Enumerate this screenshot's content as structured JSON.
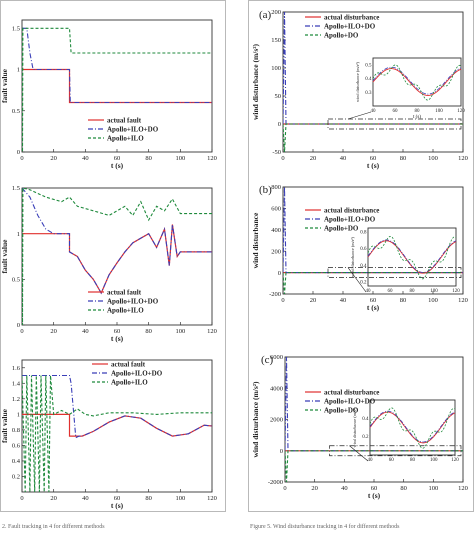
{
  "colors": {
    "actual": "#e0302f",
    "ilo_do": "#3a3fb8",
    "ilo": "#1f8a3c",
    "frame": "#b9b9b9"
  },
  "left_column": {
    "figure_caption_fragment": "2. Fault tracking in 4 for different methods"
  },
  "right_column": {
    "figure_caption_fragment": "Figure 5. Wind disturbance tracking in 4 for different methods"
  },
  "chart_data": [
    {
      "id": "left-a",
      "type": "line",
      "panel_label": "",
      "xlabel": "t (s)",
      "ylabel": "fault value",
      "xlim": [
        0,
        120
      ],
      "ylim": [
        0,
        1.6
      ],
      "x_ticks": [
        0,
        20,
        40,
        60,
        80,
        100,
        120
      ],
      "y_ticks": [
        0,
        0.5,
        1,
        1.5
      ],
      "y_tick_labels": [
        "0",
        "0.5",
        "1",
        "1.5"
      ],
      "legend": [
        "actual fault",
        "Apollo+ILO+DO",
        "Apollo+ILO"
      ],
      "series": [
        {
          "name": "actual fault",
          "x": [
            0,
            30,
            30,
            120
          ],
          "y": [
            1,
            1,
            0.6,
            0.6
          ]
        },
        {
          "name": "Apollo+ILO+DO",
          "x": [
            0,
            3,
            5,
            7,
            30,
            30.5,
            120
          ],
          "y": [
            1.5,
            1.5,
            1.2,
            1.0,
            1.0,
            0.6,
            0.6
          ]
        },
        {
          "name": "Apollo+ILO",
          "x": [
            0,
            0.3,
            0.6,
            1,
            30,
            31,
            120
          ],
          "y": [
            1.5,
            0,
            1.5,
            1.5,
            1.5,
            1.2,
            1.2
          ]
        }
      ]
    },
    {
      "id": "left-b",
      "type": "line",
      "panel_label": "",
      "xlabel": "t (s)",
      "ylabel": "fault value",
      "xlim": [
        0,
        120
      ],
      "ylim": [
        0,
        1.5
      ],
      "x_ticks": [
        0,
        20,
        40,
        60,
        80,
        100,
        120
      ],
      "y_ticks": [
        0,
        0.5,
        1,
        1.5
      ],
      "y_tick_labels": [
        "0",
        "0.5",
        "1",
        "1.5"
      ],
      "legend": [
        "actual fault",
        "Apollo+ILO+DO",
        "Apollo+ILO"
      ],
      "series": [
        {
          "name": "actual fault",
          "x": [
            0,
            30,
            30,
            35,
            40,
            45,
            50,
            55,
            60,
            65,
            70,
            75,
            80,
            85,
            90,
            93,
            95,
            98,
            100,
            120
          ],
          "y": [
            1,
            1,
            0.8,
            0.75,
            0.6,
            0.5,
            0.35,
            0.55,
            0.68,
            0.8,
            0.9,
            0.95,
            1.0,
            0.85,
            1.05,
            0.65,
            1.1,
            0.75,
            0.8,
            0.8
          ]
        },
        {
          "name": "Apollo+ILO+DO",
          "x": [
            0,
            5,
            10,
            15,
            20,
            30,
            30,
            35,
            40,
            45,
            50,
            55,
            60,
            65,
            70,
            75,
            80,
            85,
            90,
            93,
            95,
            98,
            100,
            120
          ],
          "y": [
            1.5,
            1.4,
            1.2,
            1.05,
            1.0,
            1.0,
            0.8,
            0.75,
            0.6,
            0.5,
            0.35,
            0.55,
            0.68,
            0.8,
            0.9,
            0.95,
            1.0,
            0.85,
            1.05,
            0.65,
            1.1,
            0.75,
            0.8,
            0.8
          ]
        },
        {
          "name": "Apollo+ILO",
          "x": [
            0,
            0.3,
            0.6,
            5,
            15,
            25,
            30,
            35,
            45,
            55,
            65,
            70,
            75,
            80,
            85,
            90,
            95,
            100,
            120
          ],
          "y": [
            1.5,
            0,
            1.5,
            1.48,
            1.4,
            1.35,
            1.4,
            1.3,
            1.25,
            1.2,
            1.3,
            1.2,
            1.35,
            1.15,
            1.3,
            1.25,
            1.38,
            1.22,
            1.22
          ]
        }
      ]
    },
    {
      "id": "left-c",
      "type": "line",
      "panel_label": "",
      "xlabel": "t (s)",
      "ylabel": "fault value",
      "xlim": [
        0,
        120
      ],
      "ylim": [
        0,
        1.7
      ],
      "x_ticks": [
        0,
        20,
        40,
        60,
        80,
        100,
        120
      ],
      "y_ticks": [
        0.2,
        0.4,
        0.6,
        0.8,
        1,
        1.2,
        1.4,
        1.6
      ],
      "y_tick_labels": [
        "0.2",
        "0.4",
        "0.6",
        "0.8",
        "1",
        "1.2",
        "1.4",
        "1.6"
      ],
      "legend": [
        "actual fault",
        "Apollo+ILO+DO",
        "Apollo+ILO"
      ],
      "series": [
        {
          "name": "actual fault",
          "x": [
            0,
            30,
            30,
            36,
            38,
            45,
            55,
            65,
            75,
            85,
            95,
            105,
            115,
            120
          ],
          "y": [
            1,
            1,
            0.72,
            0.72,
            0.72,
            0.78,
            0.9,
            0.98,
            0.95,
            0.82,
            0.72,
            0.75,
            0.86,
            0.85
          ]
        },
        {
          "name": "Apollo+ILO+DO",
          "x": [
            0,
            30,
            31,
            34,
            36,
            38,
            45,
            55,
            65,
            75,
            85,
            95,
            105,
            115,
            120
          ],
          "y": [
            1.5,
            1.5,
            1.4,
            0.7,
            0.72,
            0.72,
            0.78,
            0.9,
            0.98,
            0.95,
            0.82,
            0.72,
            0.75,
            0.86,
            0.85
          ]
        },
        {
          "name": "Apollo+ILO",
          "x": [
            0,
            2,
            3,
            5,
            6,
            8,
            9,
            11,
            12,
            14,
            15,
            17,
            18,
            20,
            25,
            30,
            35,
            40,
            45,
            55,
            70,
            85,
            100,
            120
          ],
          "y": [
            1.5,
            0,
            1.5,
            0,
            1.5,
            0,
            1.5,
            0,
            1.5,
            0,
            1.5,
            0,
            1.5,
            1.0,
            1.05,
            1.0,
            1.07,
            1.0,
            0.98,
            1.02,
            1.02,
            1.0,
            1.02,
            1.02
          ]
        }
      ]
    },
    {
      "id": "right-a",
      "type": "line",
      "panel_label": "(a)",
      "xlabel": "t (s)",
      "ylabel": "wind disturbance (m/s²)",
      "xlim": [
        0,
        120
      ],
      "ylim": [
        -50,
        200
      ],
      "x_ticks": [
        0,
        20,
        40,
        60,
        80,
        100,
        120
      ],
      "y_ticks": [
        -50,
        0,
        50,
        100,
        150,
        200
      ],
      "y_tick_labels": [
        "-50",
        "0",
        "50",
        "100",
        "150",
        "200"
      ],
      "legend": [
        "actual disturbance",
        "Apollo+ILO+DO",
        "Apollo+DO"
      ],
      "series": [
        {
          "name": "actual disturbance",
          "x": [
            0,
            120
          ],
          "y": [
            0,
            0
          ]
        },
        {
          "name": "Apollo+ILO+DO",
          "x": [
            0,
            1,
            2,
            120
          ],
          "y": [
            0,
            200,
            0,
            0
          ]
        },
        {
          "name": "Apollo+DO",
          "x": [
            0,
            1,
            2,
            120
          ],
          "y": [
            0,
            -50,
            0,
            0
          ]
        }
      ],
      "inset": {
        "xlim": [
          40,
          120
        ],
        "ylim": [
          0.2,
          0.55
        ],
        "x_ticks": [
          40,
          60,
          80,
          100,
          120
        ],
        "y_ticks": [
          0.3,
          0.4,
          0.5
        ],
        "xlabel": "t (s)",
        "ylabel": "wind disturbance (m/s²)"
      }
    },
    {
      "id": "right-b",
      "type": "line",
      "panel_label": "(b)",
      "xlabel": "t (s)",
      "ylabel": "wind disturbance",
      "xlim": [
        0,
        120
      ],
      "ylim": [
        -200,
        800
      ],
      "x_ticks": [
        0,
        20,
        40,
        60,
        80,
        100,
        120
      ],
      "y_ticks": [
        -200,
        0,
        200,
        400,
        600,
        800
      ],
      "y_tick_labels": [
        "-200",
        "0",
        "200",
        "400",
        "600",
        "800"
      ],
      "legend": [
        "actual disturbance",
        "Apollo+ILO+DO",
        "Apollo+DO"
      ],
      "series": [
        {
          "name": "actual disturbance",
          "x": [
            0,
            120
          ],
          "y": [
            0,
            0
          ]
        },
        {
          "name": "Apollo+ILO+DO",
          "x": [
            0,
            1,
            2,
            120
          ],
          "y": [
            0,
            800,
            0,
            0
          ]
        },
        {
          "name": "Apollo+DO",
          "x": [
            0,
            1,
            2,
            120
          ],
          "y": [
            0,
            -200,
            0,
            0
          ]
        }
      ],
      "inset": {
        "xlim": [
          40,
          120
        ],
        "ylim": [
          0.15,
          0.85
        ],
        "x_ticks": [
          40,
          60,
          80,
          100,
          120
        ],
        "y_ticks": [
          0.2,
          0.4,
          0.6,
          0.8
        ],
        "xlabel": "",
        "ylabel": "wind disturbance (m/s²)"
      }
    },
    {
      "id": "right-c",
      "type": "line",
      "panel_label": "(c)",
      "xlabel": "t (s)",
      "ylabel": "wind disturbance (m/s²)",
      "xlim": [
        0,
        120
      ],
      "ylim": [
        -2000,
        6000
      ],
      "x_ticks": [
        0,
        20,
        40,
        60,
        80,
        100,
        120
      ],
      "y_ticks": [
        -2000,
        0,
        2000,
        4000,
        6000
      ],
      "y_tick_labels": [
        "-2000",
        "0",
        "2000",
        "4000",
        "6000"
      ],
      "legend": [
        "actual disturbance",
        "Apollo+ILO+DO",
        "Apollo+DO"
      ],
      "series": [
        {
          "name": "actual disturbance",
          "x": [
            0,
            120
          ],
          "y": [
            0,
            0
          ]
        },
        {
          "name": "Apollo+ILO+DO",
          "x": [
            0,
            1,
            2,
            120
          ],
          "y": [
            0,
            6000,
            0,
            0
          ]
        },
        {
          "name": "Apollo+DO",
          "x": [
            0,
            1,
            2,
            120
          ],
          "y": [
            0,
            -2000,
            0,
            0
          ]
        }
      ],
      "inset": {
        "xlim": [
          40,
          120
        ],
        "ylim": [
          0,
          0.6
        ],
        "x_ticks": [
          40,
          60,
          80,
          100,
          120
        ],
        "y_ticks": [
          0.2,
          0.4
        ],
        "xlabel": "",
        "ylabel": "wind disturbance (m/s²)"
      }
    }
  ]
}
